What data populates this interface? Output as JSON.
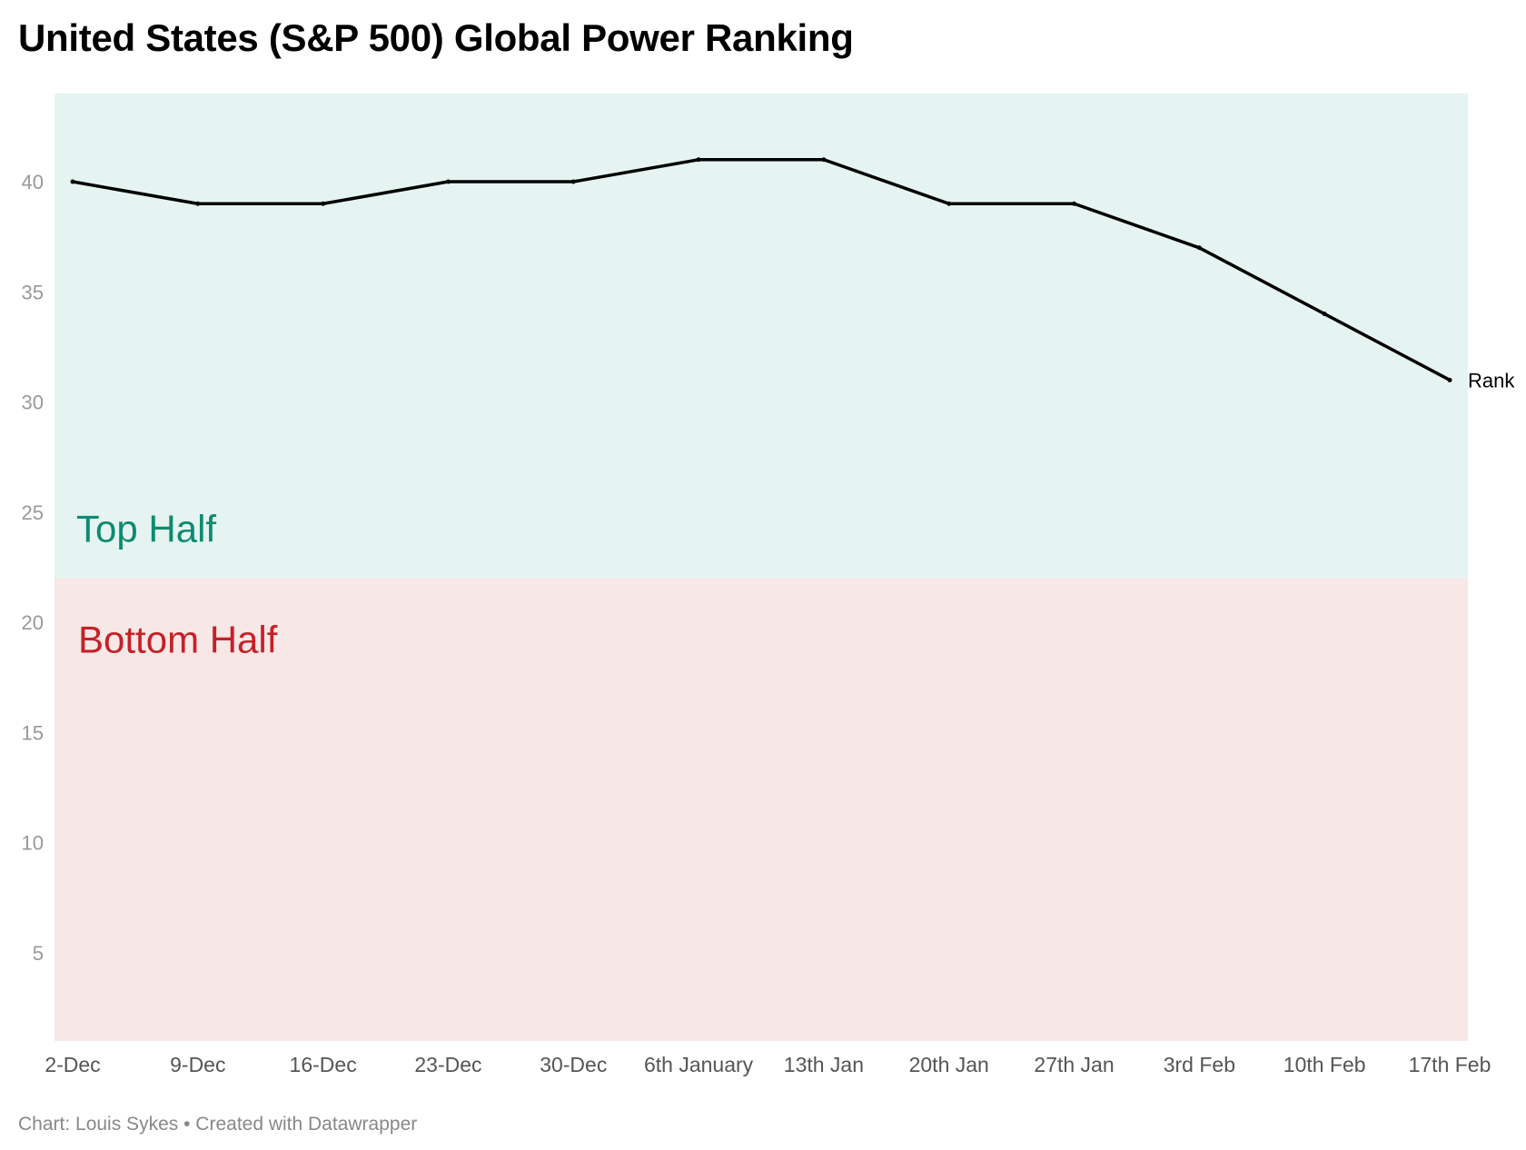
{
  "chart_data": {
    "type": "line",
    "title": "United States (S&P 500) Global Power Ranking",
    "footer": {
      "source": "Chart: Louis Sykes",
      "separator": "•",
      "credit": "Created with Datawrapper"
    },
    "x": [
      "2-Dec",
      "9-Dec",
      "16-Dec",
      "23-Dec",
      "30-Dec",
      "6th January",
      "13th Jan",
      "20th Jan",
      "27th Jan",
      "3rd Feb",
      "10th Feb",
      "17th Feb"
    ],
    "series": [
      {
        "name": "Rank",
        "values": [
          40,
          39,
          39,
          40,
          40,
          41,
          41,
          39,
          39,
          37,
          34,
          31
        ],
        "color": "#000000"
      }
    ],
    "ylim": [
      1,
      44
    ],
    "yticks": [
      5,
      10,
      15,
      20,
      25,
      30,
      35,
      40
    ],
    "bands": [
      {
        "label": "Top Half",
        "from": 22,
        "to": 44,
        "fill": "#e5f4f0",
        "text_color": "#0e8a72"
      },
      {
        "label": "Bottom Half",
        "from": 1,
        "to": 22,
        "fill": "#f7e7e7",
        "text_color": "#c52127"
      }
    ],
    "xlabel": "",
    "ylabel": "",
    "grid": false,
    "legend": "direct label at line end"
  }
}
